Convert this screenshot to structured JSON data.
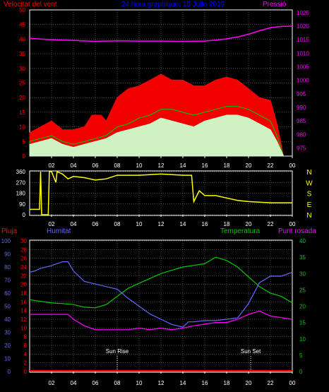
{
  "chart_data": [
    {
      "type": "area",
      "title": "24 hora graphique: 15 Julio 2019",
      "left_axis_title": "Velocitat del vent",
      "right_axis_title": "Pressió",
      "x_ticks": [
        "02",
        "04",
        "06",
        "08",
        "10",
        "12",
        "14",
        "16",
        "18",
        "20",
        "22",
        "00"
      ],
      "y_left_ticks": [
        0,
        5,
        10,
        15,
        20,
        25,
        30,
        35,
        40,
        45,
        50
      ],
      "y_right_ticks": [
        975,
        980,
        985,
        990,
        995,
        1000,
        1005,
        1010,
        1015,
        1020,
        1025
      ],
      "y_left_range": [
        0,
        50
      ],
      "y_right_range": [
        972,
        1026
      ],
      "x_range": [
        0,
        24
      ],
      "grid": true,
      "colors": {
        "gust": "#ff0000",
        "average": "#00cc00",
        "speed": "#ccffcc",
        "pressure": "#ff00ff",
        "axis_left": "#ff0000",
        "axis_right": "#ff00ff",
        "title": "#0000ff"
      },
      "series": [
        {
          "key": "pressure",
          "x": [
            0,
            2,
            4,
            6,
            8,
            10,
            12,
            14,
            16,
            17,
            18,
            19,
            20,
            21,
            22,
            23,
            24
          ],
          "values": [
            1015.5,
            1015.0,
            1014.7,
            1014.4,
            1014.6,
            1014.5,
            1014.5,
            1014.4,
            1014.5,
            1014.8,
            1015.3,
            1016.0,
            1017.0,
            1018.3,
            1019.4,
            1019.9,
            1020.0
          ]
        },
        {
          "key": "gust",
          "x": [
            0,
            1,
            2,
            3,
            4,
            5,
            5.7,
            6.5,
            7,
            8,
            9,
            10,
            11,
            12,
            13,
            14,
            15,
            16,
            17,
            18,
            19,
            20,
            21,
            22,
            22.6,
            23.2
          ],
          "values": [
            8,
            10,
            12,
            9,
            9,
            10,
            14,
            14,
            12,
            20,
            23,
            24,
            26,
            28,
            26,
            26,
            24,
            24,
            26,
            27,
            26,
            23,
            20,
            19,
            11,
            0
          ]
        },
        {
          "key": "average",
          "x": [
            0,
            1,
            2,
            3,
            4,
            5,
            6,
            7,
            8,
            9,
            10,
            11,
            12,
            13,
            14,
            15,
            16,
            17,
            18,
            19,
            20,
            21,
            22,
            22.6,
            23.2
          ],
          "values": [
            5,
            6,
            7,
            5,
            4,
            5,
            6,
            7,
            10,
            11,
            13,
            14,
            16,
            16,
            15,
            14,
            15,
            16,
            17,
            17,
            16,
            14,
            12,
            7,
            0
          ]
        },
        {
          "key": "speed",
          "x": [
            0,
            1,
            2,
            3,
            4,
            5,
            6,
            7,
            8,
            9,
            10,
            11,
            12,
            13,
            14,
            15,
            16,
            17,
            18,
            19,
            20,
            21,
            22,
            22.6,
            23.2
          ],
          "values": [
            4,
            5,
            6,
            4,
            3,
            4,
            5,
            6,
            8,
            9,
            10,
            11,
            13,
            12,
            11,
            10,
            12,
            13,
            14,
            14,
            13,
            11,
            9,
            5,
            0
          ]
        }
      ]
    },
    {
      "type": "line",
      "y_left_ticks": [
        0,
        90,
        180,
        270,
        360
      ],
      "y_right_labels": [
        "N",
        "W",
        "S",
        "E",
        "N"
      ],
      "y_range": [
        0,
        360
      ],
      "x_ticks": [
        "02",
        "04",
        "06",
        "08",
        "10",
        "12",
        "14",
        "16",
        "18",
        "20",
        "22",
        "00"
      ],
      "colors": {
        "direction": "#ffff00",
        "axis_right": "#ffff00"
      },
      "series": [
        {
          "key": "direction",
          "x": [
            0,
            0.9,
            1.0,
            1.1,
            1.7,
            1.8,
            2.0,
            2.4,
            2.5,
            3,
            3.5,
            4,
            5,
            6,
            7,
            8,
            9,
            10,
            11,
            12,
            13,
            14,
            14.8,
            15,
            15.5,
            16,
            17,
            18,
            19,
            20,
            21,
            22,
            23,
            24
          ],
          "values": [
            45,
            45,
            360,
            0,
            0,
            360,
            360,
            270,
            360,
            340,
            300,
            320,
            310,
            290,
            300,
            330,
            330,
            330,
            335,
            340,
            335,
            330,
            330,
            110,
            200,
            160,
            160,
            140,
            120,
            110,
            105,
            100,
            100,
            100
          ]
        }
      ]
    },
    {
      "type": "line",
      "axis_titles": {
        "rain": "Pluja",
        "humidity": "Humitat",
        "temperature": "Temperatura",
        "dewpoint": "Punt rosada"
      },
      "y_rain_ticks": [
        0,
        2,
        4,
        6,
        8,
        10,
        12,
        14,
        16,
        18,
        20,
        22,
        24,
        26,
        28,
        30
      ],
      "y_humidity_ticks": [
        0,
        10,
        20,
        30,
        40,
        50,
        60,
        70,
        80,
        90,
        100
      ],
      "y_temp_ticks": [
        0,
        5,
        10,
        15,
        20,
        25,
        30,
        35,
        40
      ],
      "x_ticks": [
        "02",
        "04",
        "06",
        "08",
        "10",
        "12",
        "14",
        "16",
        "18",
        "20",
        "22",
        "00"
      ],
      "markers": [
        {
          "label": "Sun Rise",
          "x": 8.0
        },
        {
          "label": "Sun Set",
          "x": 20.2
        }
      ],
      "temp_range": [
        0,
        40
      ],
      "humidity_range": [
        0,
        100
      ],
      "colors": {
        "rain": "#ff0000",
        "humidity": "#6666ff",
        "temperature": "#00cc00",
        "dewpoint": "#ff00ff",
        "marker": "#ffffff"
      },
      "series": [
        {
          "key": "temperature",
          "x": [
            0,
            1,
            2,
            3,
            4,
            5,
            6,
            7,
            8,
            9,
            10,
            11,
            12,
            13,
            14,
            15,
            16,
            17,
            18,
            19,
            20,
            21,
            22,
            23,
            24
          ],
          "values": [
            22,
            21.5,
            21,
            20.8,
            20.5,
            19.7,
            19.5,
            20.5,
            23,
            25.5,
            27,
            28.5,
            30,
            31,
            32,
            32.5,
            33,
            35,
            34,
            32,
            29,
            26,
            24,
            23,
            21
          ]
        },
        {
          "key": "dewpoint",
          "x": [
            0,
            1,
            2,
            3,
            3.5,
            4,
            5,
            6,
            7,
            8,
            9,
            10,
            11,
            12,
            13,
            14,
            15,
            16,
            17,
            18,
            19,
            20,
            21,
            22,
            23,
            24
          ],
          "values": [
            17.5,
            17.5,
            17.5,
            17.5,
            17.5,
            16,
            14,
            12.8,
            12.8,
            12.8,
            12.8,
            13.3,
            12.8,
            13.3,
            12.8,
            13.3,
            14,
            14.5,
            15,
            15,
            16,
            17.5,
            18.5,
            17,
            16.5,
            16
          ]
        },
        {
          "key": "humidity",
          "x": [
            0,
            0.5,
            1,
            2,
            3,
            3.5,
            4,
            5,
            6,
            7,
            8,
            9,
            10,
            11,
            12,
            13,
            14,
            14.5,
            15,
            16,
            17,
            18,
            19,
            20,
            21,
            22,
            23,
            24
          ],
          "values": [
            76,
            77,
            79,
            81,
            84,
            84,
            77,
            69,
            67,
            65,
            63,
            56,
            50,
            44,
            40,
            36,
            34,
            38,
            38,
            39,
            39,
            40,
            41,
            52,
            68,
            73,
            73,
            76
          ]
        },
        {
          "key": "rain",
          "x": [
            0,
            24
          ],
          "values": [
            0,
            0
          ]
        }
      ]
    }
  ]
}
